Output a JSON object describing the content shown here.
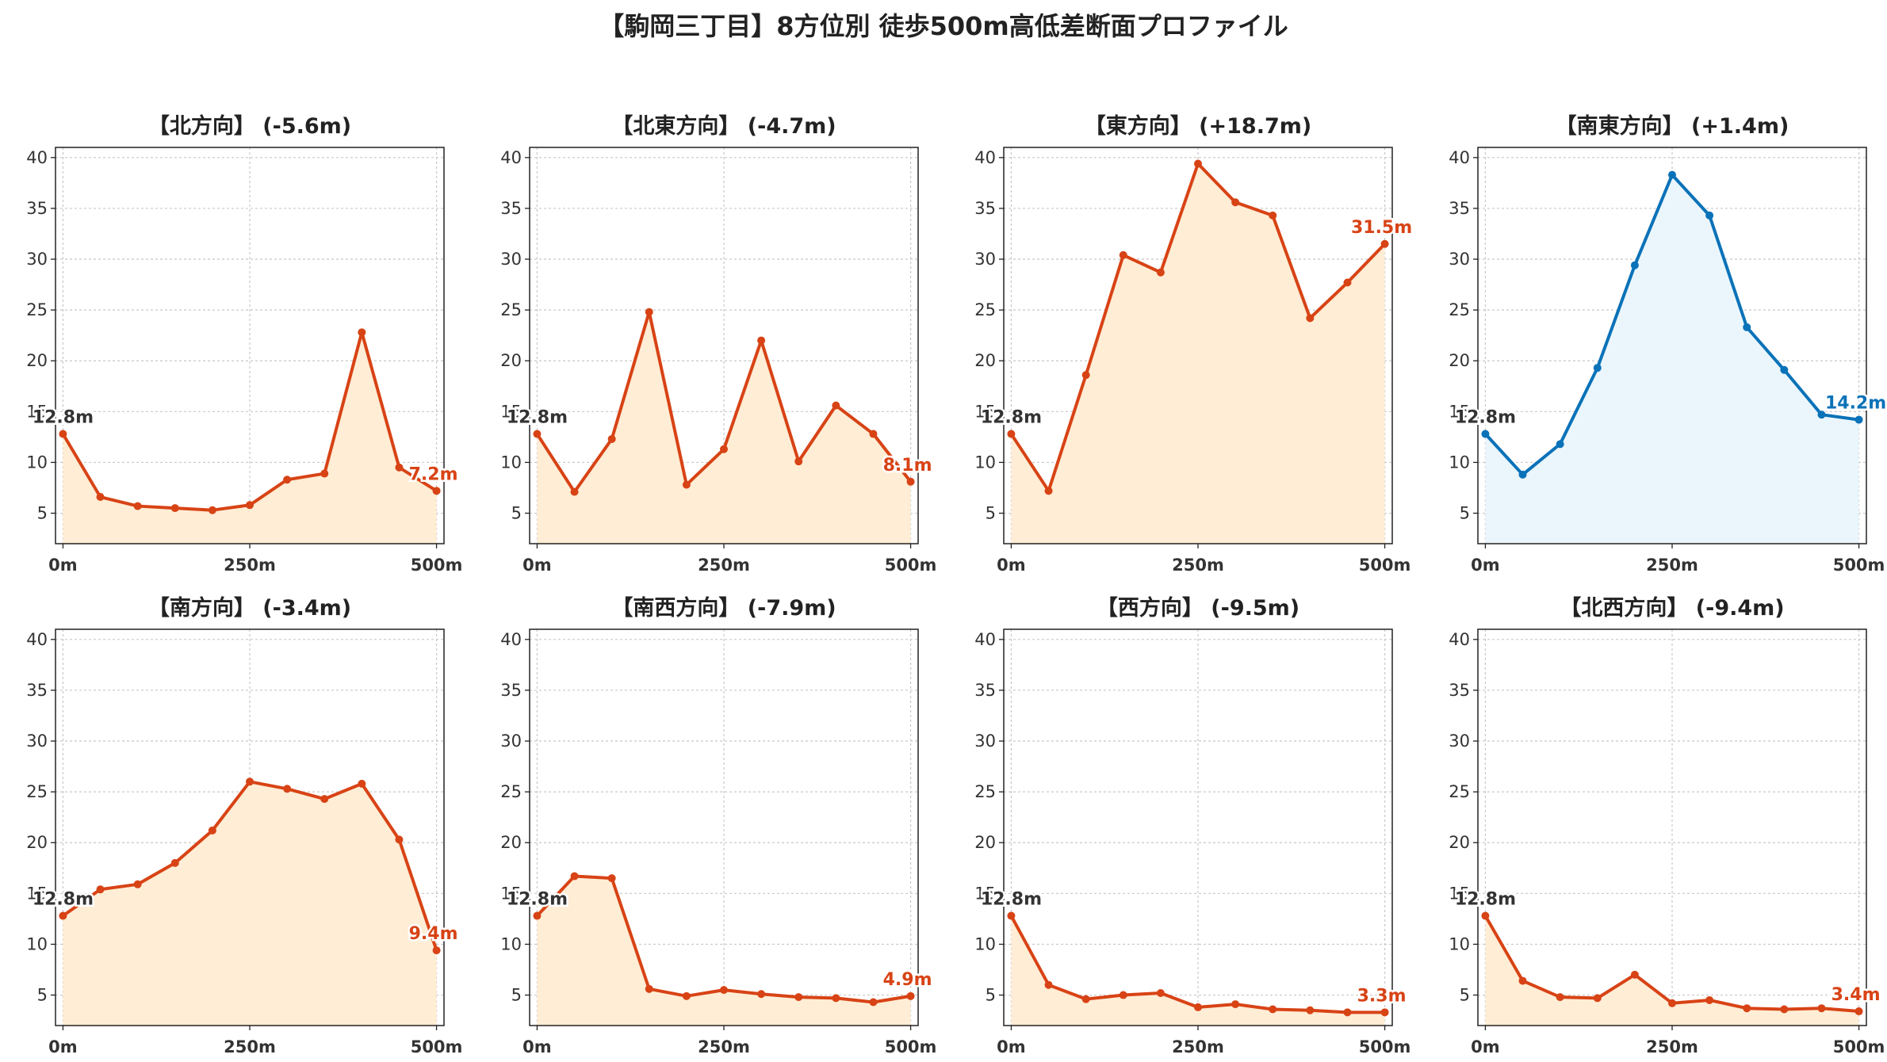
{
  "title": "【駒岡三丁目】8方位別 徒歩500m高低差断面プロファイル",
  "colors": {
    "downhill_line": "#d84315",
    "downhill_fill": "#ffedd5",
    "uphill_line": "#0a72b8",
    "uphill_fill": "#eaf6fc",
    "start_label": "#333333"
  },
  "chart_data": [
    {
      "type": "area",
      "title": "【北方向】 (-5.6m)",
      "ylim": [
        2,
        41
      ],
      "yticks": [
        5,
        10,
        15,
        20,
        25,
        30,
        35,
        40
      ],
      "xlim": [
        -10,
        510
      ],
      "xticks": [
        0,
        250,
        500
      ],
      "xtick_labels": [
        "0m",
        "250m",
        "500m"
      ],
      "x": [
        0,
        50,
        100,
        150,
        200,
        250,
        300,
        350,
        400,
        450,
        500
      ],
      "values": [
        12.8,
        6.6,
        5.7,
        5.5,
        5.3,
        5.8,
        8.3,
        8.9,
        22.8,
        9.5,
        7.2
      ],
      "start_label": "12.8m",
      "end_label": "7.2m",
      "theme": "downhill"
    },
    {
      "type": "area",
      "title": "【北東方向】 (-4.7m)",
      "ylim": [
        2,
        41
      ],
      "yticks": [
        5,
        10,
        15,
        20,
        25,
        30,
        35,
        40
      ],
      "xlim": [
        -10,
        510
      ],
      "xticks": [
        0,
        250,
        500
      ],
      "xtick_labels": [
        "0m",
        "250m",
        "500m"
      ],
      "x": [
        0,
        50,
        100,
        150,
        200,
        250,
        300,
        350,
        400,
        450,
        500
      ],
      "values": [
        12.8,
        7.1,
        12.3,
        24.8,
        7.8,
        11.3,
        22.0,
        10.1,
        15.6,
        12.8,
        8.1
      ],
      "start_label": "12.8m",
      "end_label": "8.1m",
      "theme": "downhill"
    },
    {
      "type": "area",
      "title": "【東方向】 (+18.7m)",
      "ylim": [
        2,
        41
      ],
      "yticks": [
        5,
        10,
        15,
        20,
        25,
        30,
        35,
        40
      ],
      "xlim": [
        -10,
        510
      ],
      "xticks": [
        0,
        250,
        500
      ],
      "xtick_labels": [
        "0m",
        "250m",
        "500m"
      ],
      "x": [
        0,
        50,
        100,
        150,
        200,
        250,
        300,
        350,
        400,
        450,
        500
      ],
      "values": [
        12.8,
        7.2,
        18.6,
        30.4,
        28.7,
        39.4,
        35.6,
        34.3,
        24.2,
        27.7,
        31.5
      ],
      "start_label": "12.8m",
      "end_label": "31.5m",
      "theme": "downhill"
    },
    {
      "type": "area",
      "title": "【南東方向】 (+1.4m)",
      "ylim": [
        2,
        41
      ],
      "yticks": [
        5,
        10,
        15,
        20,
        25,
        30,
        35,
        40
      ],
      "xlim": [
        -10,
        510
      ],
      "xticks": [
        0,
        250,
        500
      ],
      "xtick_labels": [
        "0m",
        "250m",
        "500m"
      ],
      "x": [
        0,
        50,
        100,
        150,
        200,
        250,
        300,
        350,
        400,
        450,
        500
      ],
      "values": [
        12.8,
        8.8,
        11.8,
        19.3,
        29.4,
        38.3,
        34.3,
        23.3,
        19.1,
        14.7,
        14.2
      ],
      "start_label": "12.8m",
      "end_label": "14.2m",
      "theme": "uphill"
    },
    {
      "type": "area",
      "title": "【南方向】 (-3.4m)",
      "ylim": [
        2,
        41
      ],
      "yticks": [
        5,
        10,
        15,
        20,
        25,
        30,
        35,
        40
      ],
      "xlim": [
        -10,
        510
      ],
      "xticks": [
        0,
        250,
        500
      ],
      "xtick_labels": [
        "0m",
        "250m",
        "500m"
      ],
      "x": [
        0,
        50,
        100,
        150,
        200,
        250,
        300,
        350,
        400,
        450,
        500
      ],
      "values": [
        12.8,
        15.4,
        15.9,
        18.0,
        21.2,
        26.0,
        25.3,
        24.3,
        25.8,
        20.3,
        9.4
      ],
      "start_label": "12.8m",
      "end_label": "9.4m",
      "theme": "downhill"
    },
    {
      "type": "area",
      "title": "【南西方向】 (-7.9m)",
      "ylim": [
        2,
        41
      ],
      "yticks": [
        5,
        10,
        15,
        20,
        25,
        30,
        35,
        40
      ],
      "xlim": [
        -10,
        510
      ],
      "xticks": [
        0,
        250,
        500
      ],
      "xtick_labels": [
        "0m",
        "250m",
        "500m"
      ],
      "x": [
        0,
        50,
        100,
        150,
        200,
        250,
        300,
        350,
        400,
        450,
        500
      ],
      "values": [
        12.8,
        16.7,
        16.5,
        5.6,
        4.9,
        5.5,
        5.1,
        4.8,
        4.7,
        4.3,
        4.9
      ],
      "start_label": "12.8m",
      "end_label": "4.9m",
      "theme": "downhill"
    },
    {
      "type": "area",
      "title": "【西方向】 (-9.5m)",
      "ylim": [
        2,
        41
      ],
      "yticks": [
        5,
        10,
        15,
        20,
        25,
        30,
        35,
        40
      ],
      "xlim": [
        -10,
        510
      ],
      "xticks": [
        0,
        250,
        500
      ],
      "xtick_labels": [
        "0m",
        "250m",
        "500m"
      ],
      "x": [
        0,
        50,
        100,
        150,
        200,
        250,
        300,
        350,
        400,
        450,
        500
      ],
      "values": [
        12.8,
        6.0,
        4.6,
        5.0,
        5.2,
        3.8,
        4.1,
        3.6,
        3.5,
        3.3,
        3.3
      ],
      "start_label": "12.8m",
      "end_label": "3.3m",
      "theme": "downhill"
    },
    {
      "type": "area",
      "title": "【北西方向】 (-9.4m)",
      "ylim": [
        2,
        41
      ],
      "yticks": [
        5,
        10,
        15,
        20,
        25,
        30,
        35,
        40
      ],
      "xlim": [
        -10,
        510
      ],
      "xticks": [
        0,
        250,
        500
      ],
      "xtick_labels": [
        "0m",
        "250m",
        "500m"
      ],
      "x": [
        0,
        50,
        100,
        150,
        200,
        250,
        300,
        350,
        400,
        450,
        500
      ],
      "values": [
        12.8,
        6.4,
        4.8,
        4.7,
        7.0,
        4.2,
        4.5,
        3.7,
        3.6,
        3.7,
        3.4
      ],
      "start_label": "12.8m",
      "end_label": "3.4m",
      "theme": "downhill"
    }
  ]
}
